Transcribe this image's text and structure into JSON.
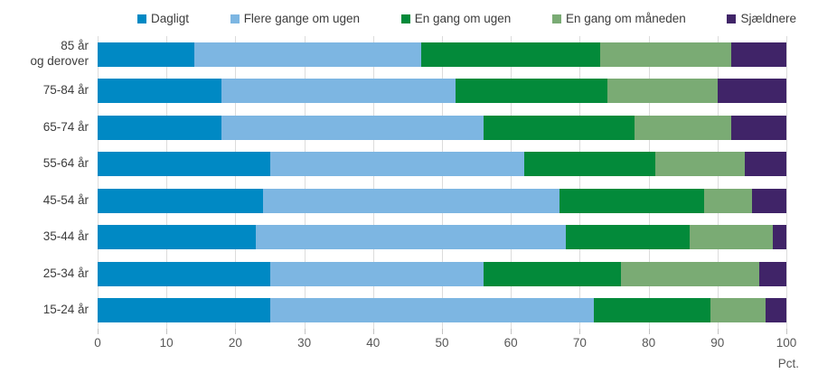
{
  "chart_data": {
    "type": "bar",
    "stacked": true,
    "orientation": "horizontal",
    "title": "",
    "xlabel": "Pct.",
    "ylabel": "",
    "xlim": [
      0,
      100
    ],
    "x_ticks": [
      0,
      10,
      20,
      30,
      40,
      50,
      60,
      70,
      80,
      90,
      100
    ],
    "grid": true,
    "legend_position": "top",
    "categories": [
      "85 år\nog derover",
      "75-84 år",
      "65-74 år",
      "55-64 år",
      "45-54 år",
      "35-44 år",
      "25-34 år",
      "15-24 år"
    ],
    "series": [
      {
        "name": "Dagligt",
        "color": "#0089c4",
        "values": [
          14,
          18,
          18,
          25,
          24,
          23,
          25,
          25
        ]
      },
      {
        "name": "Flere gange om ugen",
        "color": "#7db6e2",
        "values": [
          33,
          34,
          38,
          37,
          43,
          45,
          31,
          47
        ]
      },
      {
        "name": "En gang om ugen",
        "color": "#038a3a",
        "values": [
          26,
          22,
          22,
          19,
          21,
          18,
          20,
          17
        ]
      },
      {
        "name": "En gang om måneden",
        "color": "#7aab74",
        "values": [
          19,
          16,
          14,
          13,
          7,
          12,
          20,
          8
        ]
      },
      {
        "name": "Sjældnere",
        "color": "#402468",
        "values": [
          8,
          10,
          8,
          6,
          5,
          2,
          4,
          3
        ]
      }
    ]
  },
  "colors": {
    "gridline": "#dcdcdc",
    "tick": "#c3c3c3",
    "label_text": "#3c3c3c",
    "axis_text": "#575757"
  }
}
